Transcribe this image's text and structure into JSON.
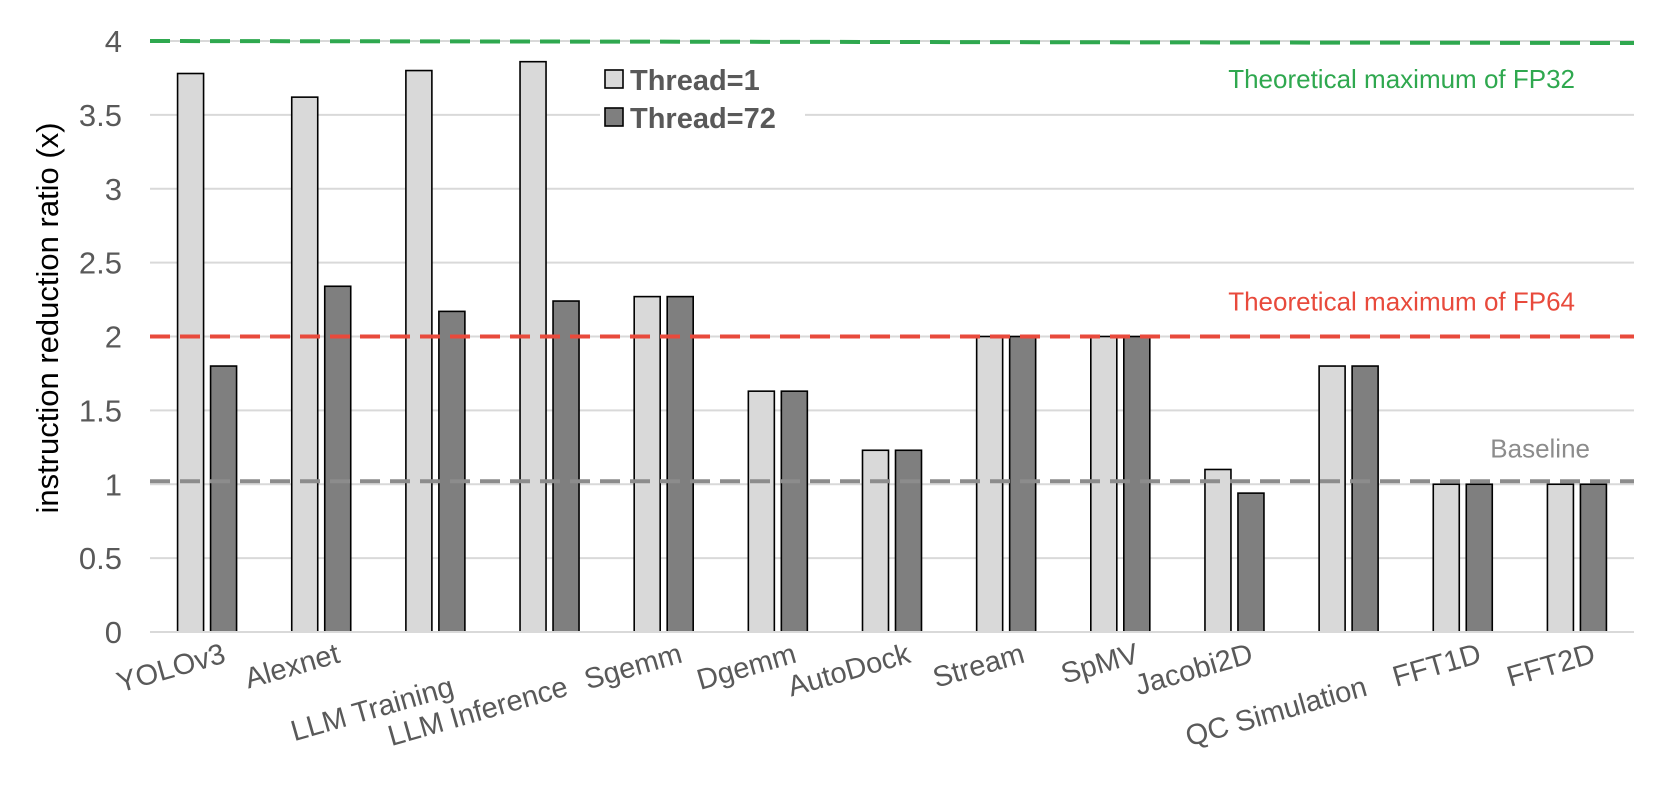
{
  "chart_data": {
    "type": "bar",
    "title": "",
    "xlabel": "",
    "ylabel": "instruction reduction ratio (x)",
    "ylim": [
      0,
      4
    ],
    "yticks": [
      "0",
      "0.5",
      "1",
      "1.5",
      "2",
      "2.5",
      "3",
      "3.5",
      "4"
    ],
    "grid": true,
    "legend_position": "top-center",
    "categories": [
      "YOLOv3",
      "Alexnet",
      "LLM Training",
      "LLM Inference",
      "Sgemm",
      "Dgemm",
      "AutoDock",
      "Stream",
      "SpMV",
      "Jacobi2D",
      "QC Simulation",
      "FFT1D",
      "FFT2D"
    ],
    "series": [
      {
        "name": "Thread=1",
        "color": "#d9d9d9",
        "values": [
          3.78,
          3.62,
          3.8,
          3.86,
          2.27,
          1.63,
          1.23,
          2.0,
          2.0,
          1.1,
          1.8,
          1.0,
          1.0
        ]
      },
      {
        "name": "Thread=72",
        "color": "#7f7f7f",
        "values": [
          1.8,
          2.34,
          2.17,
          2.24,
          2.27,
          1.63,
          1.23,
          2.0,
          2.0,
          0.94,
          1.8,
          1.0,
          1.0
        ]
      }
    ],
    "reference_lines": [
      {
        "value": 4,
        "label": "Theoretical maximum of FP32",
        "color": "#2fa84f"
      },
      {
        "value": 2,
        "label": "Theoretical maximum of FP64",
        "color": "#e84a3c"
      },
      {
        "value": 1.02,
        "label": "Baseline",
        "color": "#8c8c8c"
      }
    ]
  }
}
